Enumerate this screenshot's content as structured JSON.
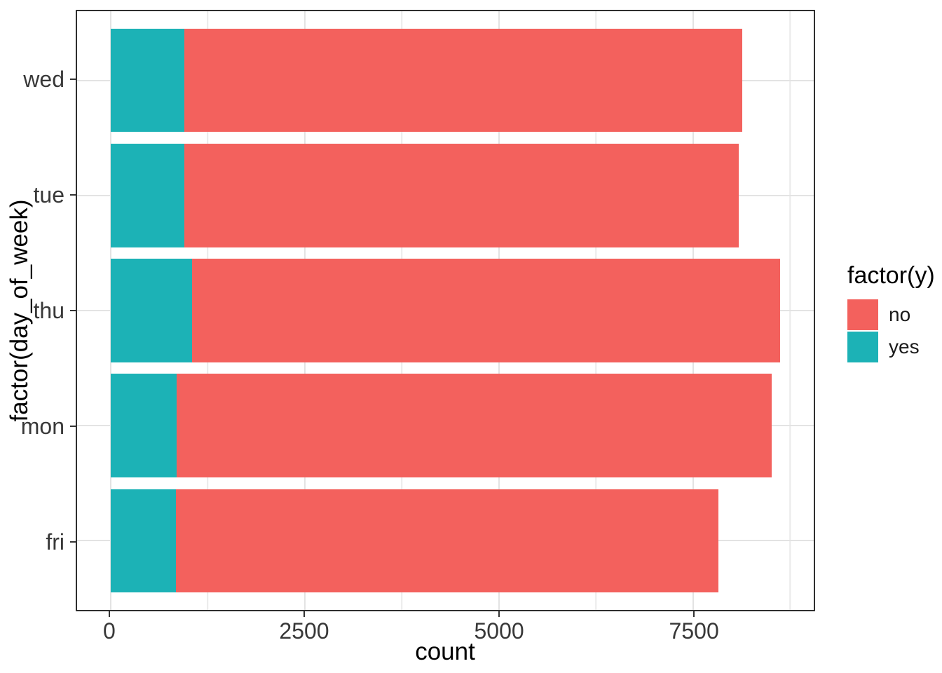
{
  "chart_data": {
    "type": "bar",
    "orientation": "horizontal",
    "stacked": true,
    "title": "",
    "xlabel": "count",
    "ylabel": "factor(day_of_week)",
    "categories": [
      "wed",
      "tue",
      "thu",
      "mon",
      "fri"
    ],
    "series": [
      {
        "name": "yes",
        "color": "#1CB2B6",
        "values": [
          949,
          953,
          1045,
          847,
          846
        ]
      },
      {
        "name": "no",
        "color": "#F3615D",
        "values": [
          7185,
          7137,
          7578,
          7667,
          6981
        ]
      }
    ],
    "totals": [
      8134,
      8090,
      8623,
      8514,
      7827
    ],
    "axes": {
      "x": {
        "lim": [
          -431,
          9054
        ],
        "ticks": [
          0,
          2500,
          5000,
          7500
        ],
        "tick_labels": [
          "0",
          "2500",
          "5000",
          "7500"
        ],
        "minor_ticks": [
          1250,
          3750,
          6250,
          8750
        ]
      },
      "y": {
        "tick_labels": [
          "wed",
          "tue",
          "thu",
          "mon",
          "fri"
        ]
      }
    },
    "legend": {
      "title": "factor(y)",
      "position": "right",
      "entries": [
        {
          "label": "no",
          "color": "#F3615D"
        },
        {
          "label": "yes",
          "color": "#1CB2B6"
        }
      ]
    },
    "grid": {
      "major_color": "#E3E3E3",
      "minor_color": "#EAEAEA"
    },
    "panel_border_color": "#2F2F2F",
    "background": "#FFFFFF"
  }
}
